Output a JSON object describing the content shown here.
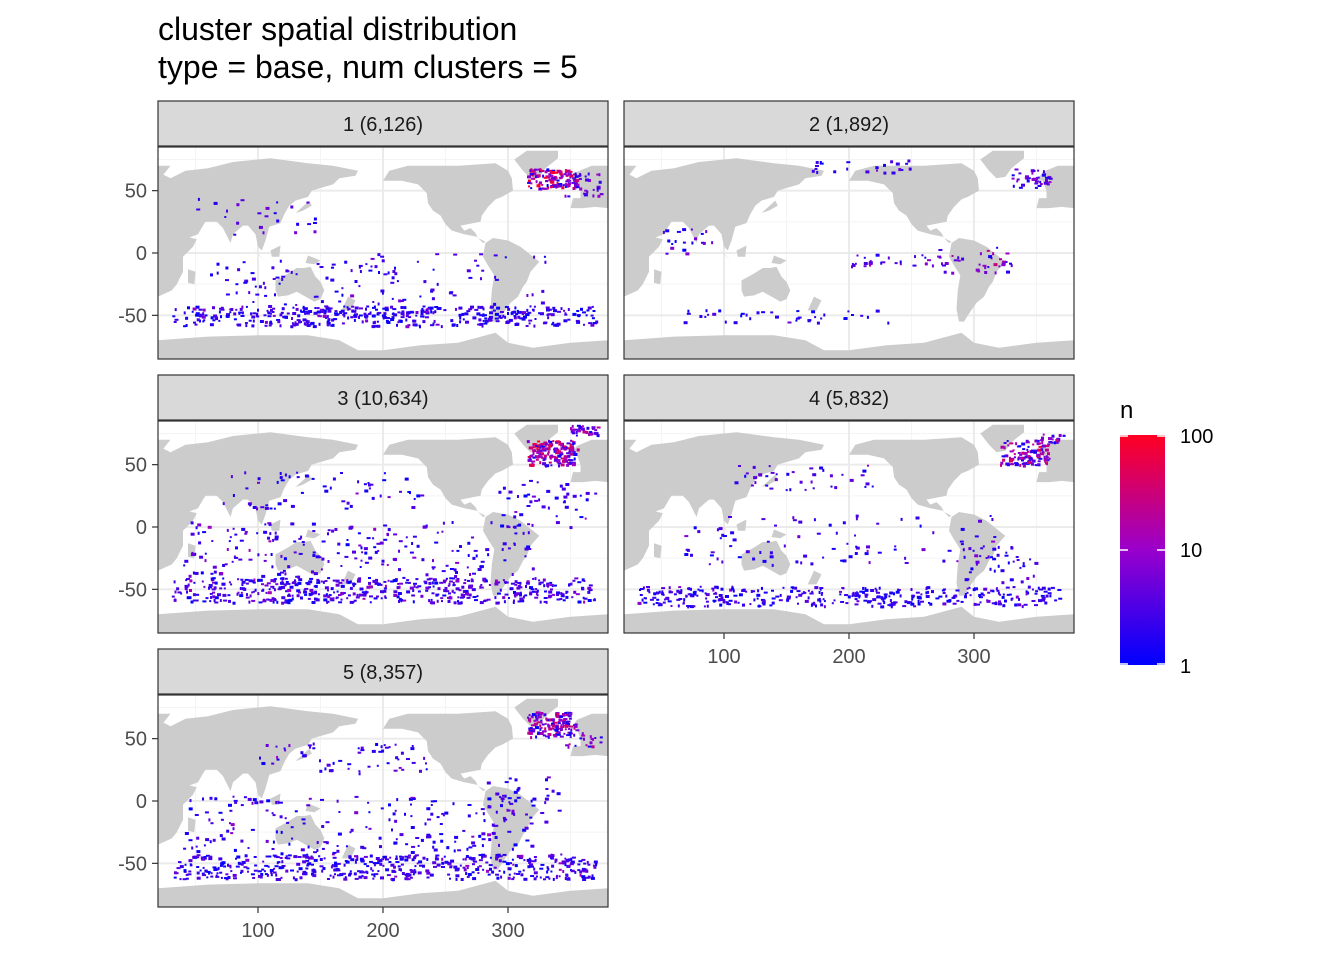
{
  "title_line1": "cluster spatial distribution",
  "title_line2": "type = base, num clusters = 5",
  "chart_data": {
    "type": "heatmap",
    "description_title": "cluster spatial distribution",
    "subtitle": "type = base, num clusters = 5",
    "xlabel": "",
    "ylabel": "",
    "xlim": [
      20,
      380
    ],
    "ylim": [
      -85,
      85
    ],
    "x_ticks": [
      100,
      200,
      300
    ],
    "y_ticks": [
      -50,
      0,
      50
    ],
    "x_tick_labels": [
      "100",
      "200",
      "300"
    ],
    "y_tick_labels": [
      "-50",
      "0",
      "50"
    ],
    "facets": [
      {
        "label": "1 (6,126)",
        "cluster": 1,
        "count": 6126
      },
      {
        "label": "2 (1,892)",
        "cluster": 2,
        "count": 1892
      },
      {
        "label": "3 (10,634)",
        "cluster": 3,
        "count": 10634
      },
      {
        "label": "4 (5,832)",
        "cluster": 4,
        "count": 5832
      },
      {
        "label": "5 (8,357)",
        "cluster": 5,
        "count": 8357
      }
    ],
    "legend": {
      "title": "n",
      "scale": "log10",
      "breaks": [
        1,
        10,
        100
      ],
      "break_labels": [
        "1",
        "10",
        "100"
      ],
      "color_low": "#0000ff",
      "color_high": "#ff0000",
      "placement": "right"
    }
  },
  "colors": {
    "panel_bg": "#ffffff",
    "land": "#cccccc",
    "strip_bg": "#d9d9d9",
    "grid": "#ebebeb",
    "border": "#333333",
    "axis_text": "#4d4d4d"
  }
}
